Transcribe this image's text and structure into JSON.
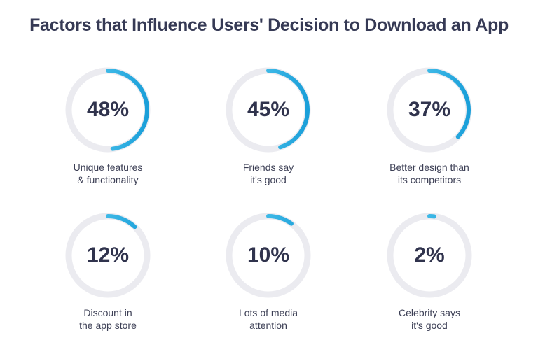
{
  "chart_data": {
    "type": "gauge",
    "title": "Factors that Influence Users' Decision to Download an App",
    "unit": "%",
    "items": [
      {
        "value": 48,
        "display": "48%",
        "label_lines": [
          "Unique features",
          "& functionality"
        ]
      },
      {
        "value": 45,
        "display": "45%",
        "label_lines": [
          "Friends say",
          "it's good"
        ]
      },
      {
        "value": 37,
        "display": "37%",
        "label_lines": [
          "Better design than",
          "its competitors"
        ]
      },
      {
        "value": 12,
        "display": "12%",
        "label_lines": [
          "Discount in",
          "the app store"
        ]
      },
      {
        "value": 10,
        "display": "10%",
        "label_lines": [
          "Lots of media",
          "attention"
        ]
      },
      {
        "value": 2,
        "display": "2%",
        "label_lines": [
          "Celebrity says",
          "it's good"
        ]
      }
    ],
    "range": [
      0,
      100
    ]
  },
  "colors": {
    "track": "#ebebf0",
    "arc_start": "#5fd0f3",
    "arc_end": "#1a9fd9",
    "text": "#30334d"
  }
}
